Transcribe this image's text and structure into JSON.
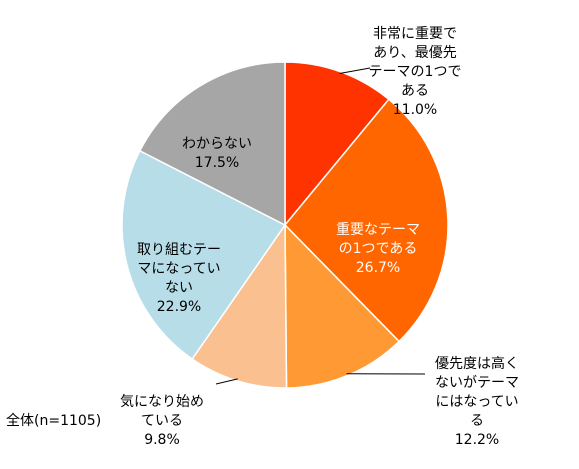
{
  "chart_data": {
    "type": "pie",
    "slices": [
      {
        "label": "非常に重要で\nあり、最優先\nテーマの1つで\nある",
        "value": 11.0,
        "value_label": "11.0%",
        "color": "#FF3300",
        "text_color": "#000000"
      },
      {
        "label": "重要なテーマ\nの1つである",
        "value": 26.7,
        "value_label": "26.7%",
        "color": "#FF6600",
        "text_color": "#FFFFFF"
      },
      {
        "label": "優先度は高く\nないがテーマ\nにはなってい\nる",
        "value": 12.2,
        "value_label": "12.2%",
        "color": "#FF9933",
        "text_color": "#000000"
      },
      {
        "label": "気になり始め\nている",
        "value": 9.8,
        "value_label": "9.8%",
        "color": "#FAC090",
        "text_color": "#000000"
      },
      {
        "label": "取り組むテー\nマになってい\nない",
        "value": 22.9,
        "value_label": "22.9%",
        "color": "#B7DDE8",
        "text_color": "#000000"
      },
      {
        "label": "わからない",
        "value": 17.5,
        "value_label": "17.5%",
        "color": "#A6A6A6",
        "text_color": "#000000"
      }
    ],
    "start_angle_deg": 0,
    "direction": "clockwise"
  },
  "footnote": "全体(n=1105)"
}
